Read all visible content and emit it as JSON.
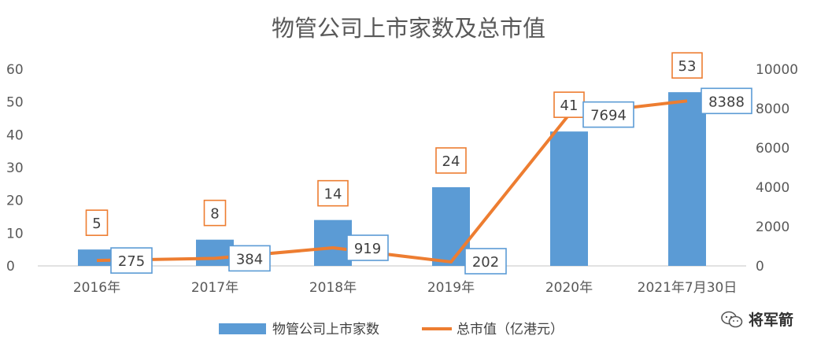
{
  "chart_data": {
    "type": "bar",
    "title": "物管公司上市家数及总市值",
    "categories": [
      "2016年",
      "2017年",
      "2018年",
      "2019年",
      "2020年",
      "2021年7月30日"
    ],
    "series": [
      {
        "name": "物管公司上市家数",
        "type": "bar",
        "axis": "left",
        "color": "#5b9bd5",
        "values": [
          5,
          8,
          14,
          24,
          41,
          53
        ]
      },
      {
        "name": "总市值（亿港元）",
        "type": "line",
        "axis": "right",
        "color": "#ed7d31",
        "values": [
          275,
          384,
          919,
          202,
          7694,
          8388
        ]
      }
    ],
    "y_left": {
      "min": 0,
      "max": 60,
      "ticks": [
        "0",
        "10",
        "20",
        "30",
        "40",
        "50",
        "60"
      ]
    },
    "y_right": {
      "min": 0,
      "max": 10000,
      "ticks": [
        "0",
        "2000",
        "4000",
        "6000",
        "8000",
        "10000"
      ]
    },
    "legend_position": "bottom",
    "grid": false
  },
  "watermark": {
    "text": "将军箭"
  }
}
